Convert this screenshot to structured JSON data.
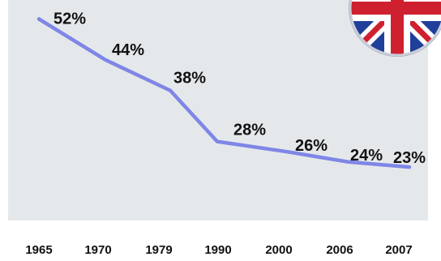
{
  "chart_data": {
    "type": "line",
    "title": "",
    "xlabel": "",
    "ylabel": "",
    "categories": [
      "1965",
      "1970",
      "1979",
      "1990",
      "2000",
      "2006",
      "2007"
    ],
    "values": [
      52,
      44,
      38,
      28,
      26,
      24,
      23
    ],
    "value_labels": [
      "52%",
      "44%",
      "38%",
      "28%",
      "26%",
      "24%",
      "23%"
    ],
    "ylim": [
      0,
      60
    ],
    "grid": false,
    "legend": "none",
    "colors": {
      "line": "#7f86e6",
      "plot_background": "#e5e8eb",
      "text": "#111111"
    },
    "decoration": {
      "flag_icon": "union-jack-badge-icon"
    }
  }
}
